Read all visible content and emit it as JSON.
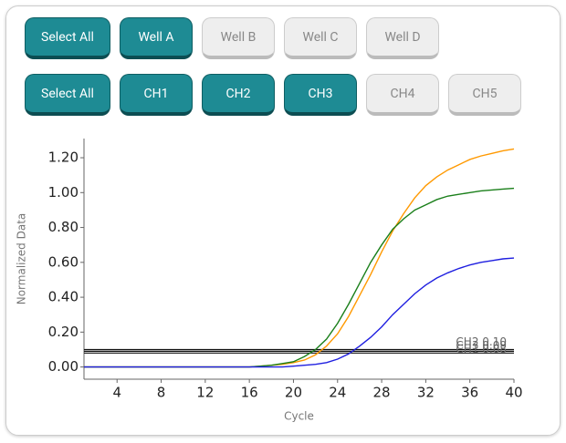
{
  "button_rows": [
    [
      {
        "label": "Select All",
        "active": true
      },
      {
        "label": "Well A",
        "active": true
      },
      {
        "label": "Well B",
        "active": false
      },
      {
        "label": "Well C",
        "active": false
      },
      {
        "label": "Well D",
        "active": false
      }
    ],
    [
      {
        "label": "Select All",
        "active": true
      },
      {
        "label": "CH1",
        "active": true
      },
      {
        "label": "CH2",
        "active": true
      },
      {
        "label": "CH3",
        "active": true
      },
      {
        "label": "CH4",
        "active": false
      },
      {
        "label": "CH5",
        "active": false
      }
    ]
  ],
  "chart_data": {
    "type": "line",
    "xlabel": "Cycle",
    "ylabel": "Normalized Data",
    "x": [
      1,
      2,
      3,
      4,
      5,
      6,
      7,
      8,
      9,
      10,
      11,
      12,
      13,
      14,
      15,
      16,
      17,
      18,
      19,
      20,
      21,
      22,
      23,
      24,
      25,
      26,
      27,
      28,
      29,
      30,
      31,
      32,
      33,
      34,
      35,
      36,
      37,
      38,
      39,
      40
    ],
    "series": [
      {
        "color": "#ff9900",
        "values": [
          0,
          0,
          0,
          0,
          0,
          0,
          0,
          0,
          0,
          0,
          0,
          0,
          0,
          0,
          0,
          0,
          0.005,
          0.01,
          0.015,
          0.025,
          0.04,
          0.07,
          0.12,
          0.19,
          0.29,
          0.41,
          0.53,
          0.66,
          0.78,
          0.88,
          0.97,
          1.04,
          1.09,
          1.13,
          1.16,
          1.19,
          1.21,
          1.225,
          1.24,
          1.25
        ]
      },
      {
        "color": "#1a7f1a",
        "values": [
          0,
          0,
          0,
          0,
          0,
          0,
          0,
          0,
          0,
          0,
          0,
          0,
          0,
          0,
          0,
          0,
          0.005,
          0.01,
          0.02,
          0.03,
          0.06,
          0.1,
          0.16,
          0.25,
          0.36,
          0.48,
          0.6,
          0.7,
          0.79,
          0.85,
          0.9,
          0.93,
          0.96,
          0.98,
          0.99,
          1.0,
          1.01,
          1.015,
          1.02,
          1.025
        ]
      },
      {
        "color": "#1f1fe0",
        "values": [
          0,
          0,
          0,
          0,
          0,
          0,
          0,
          0,
          0,
          0,
          0,
          0,
          0,
          0,
          0,
          0,
          0,
          0,
          0,
          0.005,
          0.01,
          0.015,
          0.025,
          0.045,
          0.075,
          0.12,
          0.17,
          0.23,
          0.3,
          0.36,
          0.42,
          0.47,
          0.51,
          0.54,
          0.565,
          0.585,
          0.6,
          0.61,
          0.62,
          0.625
        ]
      }
    ],
    "thresholds": [
      {
        "value": 0.1,
        "label": "CH2 0.10"
      },
      {
        "value": 0.09,
        "label": "CH3 0.09"
      },
      {
        "value": 0.08,
        "label": "CH1 0.08"
      }
    ],
    "xlim": [
      1,
      40
    ],
    "ylim": [
      -0.07,
      1.31
    ],
    "xticks": [
      4,
      8,
      12,
      16,
      20,
      24,
      28,
      32,
      36,
      40
    ],
    "yticks": [
      {
        "value": 0,
        "label": "0.00"
      },
      {
        "value": 0.2,
        "label": "0.20"
      },
      {
        "value": 0.4,
        "label": "0.40"
      },
      {
        "value": 0.6,
        "label": "0.60"
      },
      {
        "value": 0.8,
        "label": "0.80"
      },
      {
        "value": 1.0,
        "label": "1.00"
      },
      {
        "value": 1.2,
        "label": "1.20"
      }
    ]
  }
}
